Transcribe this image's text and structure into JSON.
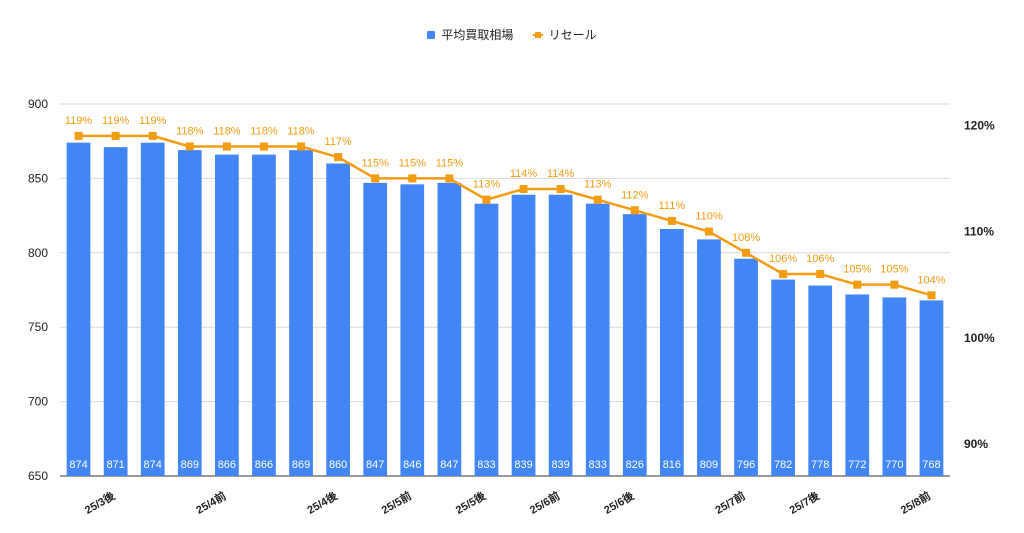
{
  "legend": {
    "bars_label": "平均買取相場",
    "line_label": "リセール"
  },
  "colors": {
    "bar": "#4285f4",
    "line": "#f39c12",
    "grid": "#d9d9d9",
    "axis_text": "#222222",
    "bar_label": "#ffffff"
  },
  "chart_data": {
    "type": "bar",
    "x_tick_labels": [
      {
        "index": 1,
        "label": "25/3後"
      },
      {
        "index": 4,
        "label": "25/4前"
      },
      {
        "index": 7,
        "label": "25/4後"
      },
      {
        "index": 9,
        "label": "25/5前"
      },
      {
        "index": 11,
        "label": "25/5後"
      },
      {
        "index": 13,
        "label": "25/6前"
      },
      {
        "index": 15,
        "label": "25/6後"
      },
      {
        "index": 18,
        "label": "25/7前"
      },
      {
        "index": 20,
        "label": "25/7後"
      },
      {
        "index": 23,
        "label": "25/8前"
      }
    ],
    "series": [
      {
        "name": "平均買取相場",
        "type": "bar",
        "axis": "left",
        "values": [
          874,
          871,
          874,
          869,
          866,
          866,
          869,
          860,
          847,
          846,
          847,
          833,
          839,
          839,
          833,
          826,
          816,
          809,
          796,
          782,
          778,
          772,
          770,
          768
        ]
      },
      {
        "name": "リセール",
        "type": "line",
        "axis": "right",
        "values": [
          119,
          119,
          119,
          118,
          118,
          118,
          118,
          117,
          115,
          115,
          115,
          113,
          114,
          114,
          113,
          112,
          111,
          110,
          108,
          106,
          106,
          105,
          105,
          104
        ]
      }
    ],
    "y_left": {
      "ylim": [
        650,
        900
      ],
      "ticks": [
        650,
        700,
        750,
        800,
        850,
        900
      ]
    },
    "y_right": {
      "ylim": [
        87,
        122
      ],
      "ticks": [
        90,
        100,
        110,
        120
      ],
      "tick_labels": [
        "90%",
        "100%",
        "110%",
        "120%"
      ]
    },
    "grid": true,
    "legend_position": "top"
  }
}
